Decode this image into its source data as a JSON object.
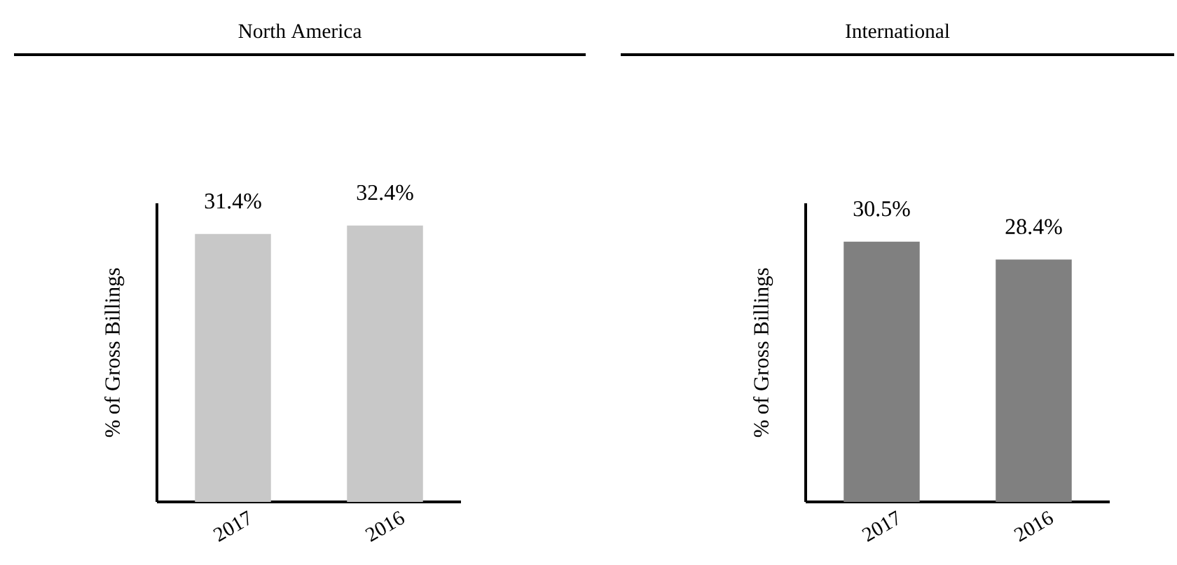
{
  "chart_data": [
    {
      "type": "bar",
      "title": "North America",
      "ylabel": "% of Gross Billings",
      "categories": [
        "2017",
        "2016"
      ],
      "values": [
        31.4,
        32.4
      ],
      "value_labels": [
        "31.4%",
        "32.4%"
      ],
      "color": "#c8c8c8",
      "ylim": [
        0,
        35
      ]
    },
    {
      "type": "bar",
      "title": "International",
      "ylabel": "% of Gross Billings",
      "categories": [
        "2017",
        "2016"
      ],
      "values": [
        30.5,
        28.4
      ],
      "value_labels": [
        "30.5%",
        "28.4%"
      ],
      "color": "#808080",
      "ylim": [
        0,
        35
      ]
    }
  ]
}
